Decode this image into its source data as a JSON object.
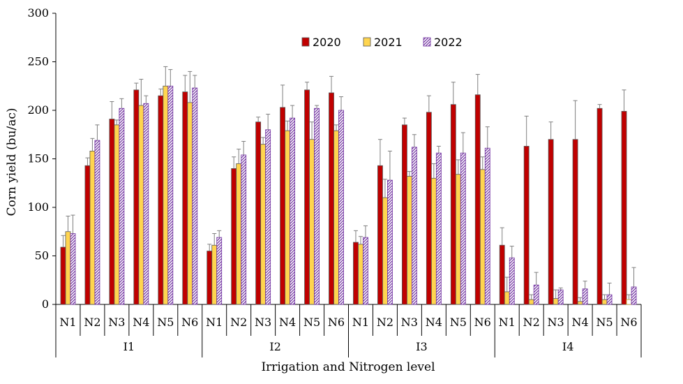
{
  "chart_data": {
    "type": "bar",
    "ylabel": "Corn yield (bu/ac)",
    "xlabel": "Irrigation and Nitrogen level",
    "ylim": [
      0,
      300
    ],
    "yticks": [
      0,
      50,
      100,
      150,
      200,
      250,
      300
    ],
    "groups": [
      "I1",
      "I2",
      "I3",
      "I4"
    ],
    "subcategories": [
      "N1",
      "N2",
      "N3",
      "N4",
      "N5",
      "N6"
    ],
    "legend_position": "top",
    "series": [
      {
        "name": "2020",
        "color": "#c00000",
        "pattern": "solid",
        "values": [
          59,
          143,
          191,
          221,
          215,
          219,
          55,
          140,
          188,
          203,
          221,
          218,
          64,
          143,
          185,
          198,
          206,
          216,
          61,
          163,
          170,
          170,
          202,
          199
        ],
        "errors": [
          12,
          8,
          18,
          7,
          7,
          17,
          7,
          12,
          5,
          23,
          8,
          17,
          12,
          27,
          7,
          17,
          23,
          21,
          18,
          31,
          18,
          40,
          4,
          22
        ]
      },
      {
        "name": "2021",
        "color": "#ffd54f",
        "pattern": "solid",
        "values": [
          75,
          158,
          185,
          205,
          225,
          208,
          61,
          145,
          165,
          179,
          170,
          179,
          62,
          110,
          132,
          130,
          134,
          139,
          13,
          5,
          6,
          3,
          5,
          5
        ],
        "errors": [
          16,
          13,
          5,
          27,
          20,
          32,
          12,
          15,
          7,
          10,
          18,
          6,
          8,
          19,
          5,
          15,
          15,
          13,
          15,
          5,
          9,
          4,
          5,
          5
        ],
        "hollow_last_bar": true
      },
      {
        "name": "2022",
        "color": "#7030a0",
        "pattern": "hatched",
        "values": [
          73,
          169,
          202,
          207,
          225,
          223,
          69,
          154,
          180,
          192,
          202,
          200,
          69,
          128,
          162,
          156,
          156,
          161,
          48,
          20,
          15,
          16,
          10,
          18
        ],
        "errors": [
          19,
          16,
          10,
          8,
          17,
          13,
          7,
          14,
          16,
          13,
          3,
          14,
          12,
          30,
          13,
          7,
          21,
          22,
          12,
          13,
          2,
          8,
          12,
          20
        ]
      }
    ]
  }
}
